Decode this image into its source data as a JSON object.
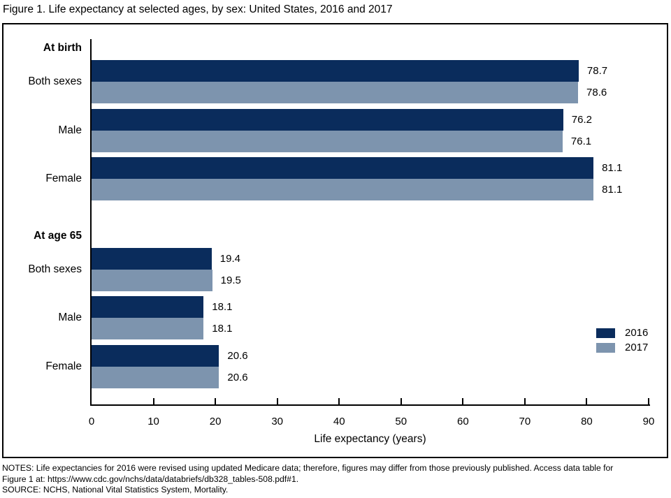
{
  "figure": {
    "title": "Figure 1. Life expectancy at selected ages, by sex: United States, 2016 and 2017"
  },
  "chart_data": {
    "type": "bar",
    "orientation": "horizontal",
    "xlabel": "Life expectancy (years)",
    "xlim": [
      0,
      90
    ],
    "xticks": [
      0,
      10,
      20,
      30,
      40,
      50,
      60,
      70,
      80,
      90
    ],
    "legend_position": "right-inside",
    "grid": false,
    "groups": [
      {
        "label": "At birth",
        "categories": [
          "Both sexes",
          "Male",
          "Female"
        ],
        "series": [
          {
            "name": "2016",
            "values": [
              78.7,
              76.2,
              81.1
            ]
          },
          {
            "name": "2017",
            "values": [
              78.6,
              76.1,
              81.1
            ]
          }
        ]
      },
      {
        "label": "At age 65",
        "categories": [
          "Both sexes",
          "Male",
          "Female"
        ],
        "series": [
          {
            "name": "2016",
            "values": [
              19.4,
              18.1,
              20.6
            ]
          },
          {
            "name": "2017",
            "values": [
              19.5,
              18.1,
              20.6
            ]
          }
        ]
      }
    ],
    "legend": [
      "2016",
      "2017"
    ],
    "colors": {
      "2016": "#0A2C5C",
      "2017": "#7D94AE"
    },
    "axis_color": "#000000"
  },
  "footer": {
    "lines": [
      "NOTES: Life expectancies for 2016 were revised using updated Medicare data; therefore, figures may differ from those previously published. Access data table for",
      "Figure 1 at: https://www.cdc.gov/nchs/data/databriefs/db328_tables-508.pdf#1.",
      "SOURCE: NCHS, National Vital Statistics System, Mortality."
    ]
  }
}
